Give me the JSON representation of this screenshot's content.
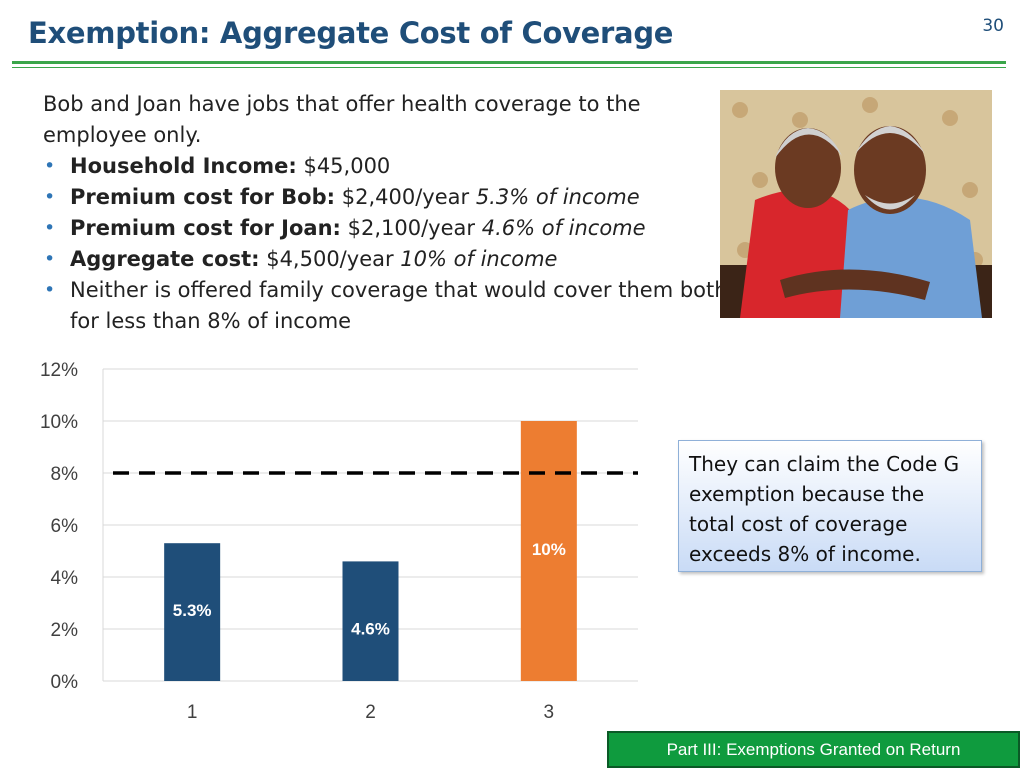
{
  "header": {
    "title": "Exemption:  Aggregate Cost of Coverage",
    "page_number": "30"
  },
  "body": {
    "intro": "Bob and Joan have jobs that offer health coverage to the employee only.",
    "bullets": [
      {
        "label": "Household Income:",
        "value": " $45,000",
        "note": ""
      },
      {
        "label": "Premium cost for Bob:",
        "value": "  $2,400/year ",
        "note": " 5.3% of income"
      },
      {
        "label": "Premium cost for Joan:",
        "value": "  $2,100/year ",
        "note": " 4.6% of income"
      },
      {
        "label": "Aggregate cost:",
        "value": " $4,500/year ",
        "note": " 10% of income"
      },
      {
        "label": "",
        "value": "Neither is offered family coverage that would cover them both for less than 8% of income",
        "note": ""
      }
    ]
  },
  "callout": {
    "before": "They can claim the ",
    "code": "Code G",
    "after": " exemption because the total cost of coverage exceeds 8% of income."
  },
  "footer": {
    "badge": "Part III: Exemptions Granted on Return"
  },
  "colors": {
    "accent_green": "#3aa64a",
    "title_blue": "#1f4e79",
    "bar_blue": "#1f4e79",
    "bar_orange": "#ed7d31"
  },
  "chart_data": {
    "type": "bar",
    "categories": [
      "1",
      "2",
      "3"
    ],
    "values": [
      5.3,
      4.6,
      10
    ],
    "data_labels": [
      "5.3%",
      "4.6%",
      "10%"
    ],
    "bar_colors": [
      "#1f4e79",
      "#1f4e79",
      "#ed7d31"
    ],
    "ylim": [
      0,
      12
    ],
    "yticks": [
      "0%",
      "2%",
      "4%",
      "6%",
      "8%",
      "10%",
      "12%"
    ],
    "threshold": {
      "value": 8,
      "style": "dashed"
    },
    "grid": true,
    "title": "",
    "xlabel": "",
    "ylabel": ""
  }
}
